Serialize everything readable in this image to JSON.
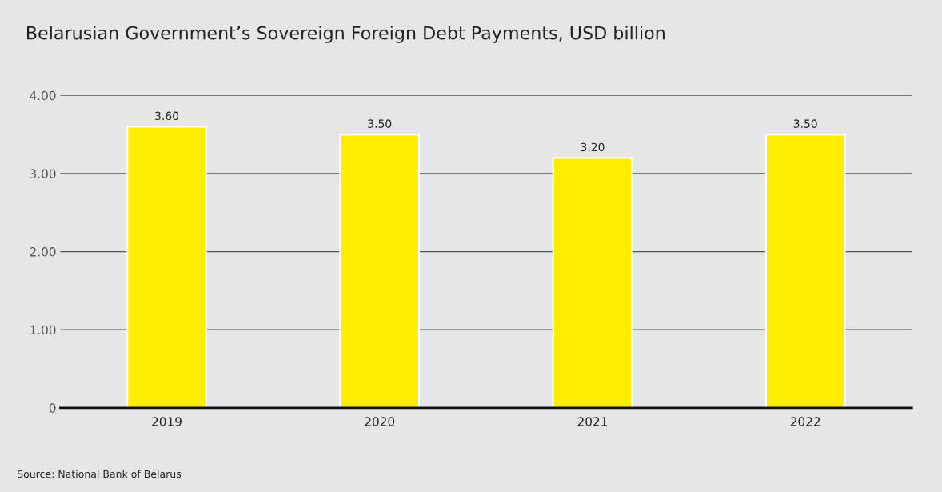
{
  "chart_data": {
    "type": "bar",
    "title": "Belarusian Government’s Sovereign Foreign Debt Payments, USD billion",
    "categories": [
      "2019",
      "2020",
      "2021",
      "2022"
    ],
    "values": [
      3.6,
      3.5,
      3.2,
      3.5
    ],
    "value_labels": [
      "3.60",
      "3.50",
      "3.20",
      "3.50"
    ],
    "color": "#ffed00",
    "ylim": [
      0,
      4
    ],
    "yticks": [
      0,
      {
        "value": 1,
        "label": "1.00"
      },
      {
        "value": 2,
        "label": "2.00"
      },
      {
        "value": 3,
        "label": "3.00"
      },
      {
        "value": 4,
        "label": "4.00"
      }
    ],
    "grid": "y",
    "annotations": [
      "Source: National Bank of Belarus"
    ]
  }
}
